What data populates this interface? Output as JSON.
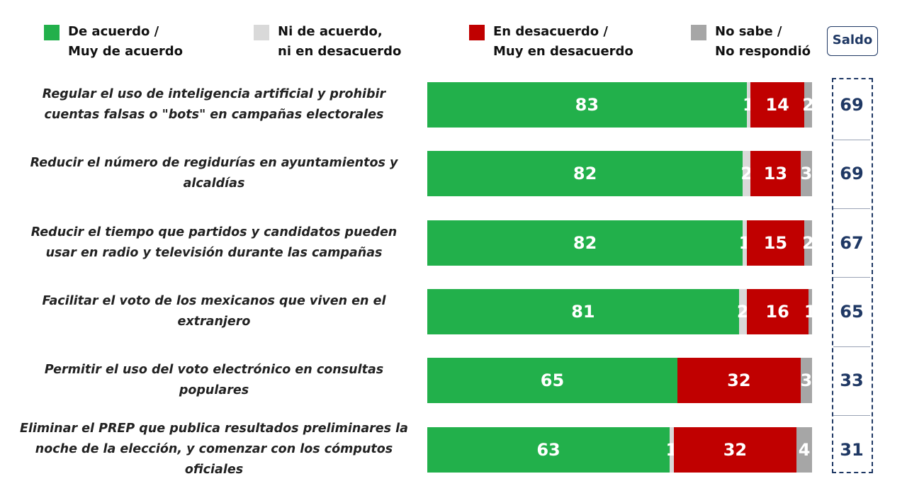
{
  "chart_data": {
    "type": "stacked-barh",
    "categories": [
      "Regular el uso de inteligencia artificial y prohibir cuentas falsas o \"bots\" en campañas electorales",
      "Reducir el número de regidurías en ayuntamientos y alcaldías",
      "Reducir el tiempo que partidos y candidatos pueden usar en radio y televisión durante las campañas",
      "Facilitar el voto de los mexicanos que viven en el extranjero",
      "Permitir el uso del voto electrónico en consultas populares",
      "Eliminar el PREP que publica resultados preliminares la noche de la elección, y comenzar con los cómputos oficiales"
    ],
    "series": [
      {
        "name": "De acuerdo /\nMuy de acuerdo",
        "color": "#22b04b",
        "values": [
          83,
          82,
          82,
          81,
          65,
          63
        ]
      },
      {
        "name": "Ni de acuerdo,\nni en desacuerdo",
        "color": "#d9d9d9",
        "values": [
          1,
          2,
          1,
          2,
          0,
          1
        ]
      },
      {
        "name": "En desacuerdo /\nMuy en desacuerdo",
        "color": "#c00000",
        "values": [
          14,
          13,
          15,
          16,
          32,
          32
        ]
      },
      {
        "name": "No sabe /\nNo respondió",
        "color": "#a6a6a6",
        "values": [
          2,
          3,
          2,
          1,
          3,
          4
        ]
      }
    ],
    "xlim": [
      0,
      100
    ],
    "saldo": {
      "title": "Saldo",
      "values": [
        69,
        69,
        67,
        65,
        33,
        31
      ]
    }
  }
}
